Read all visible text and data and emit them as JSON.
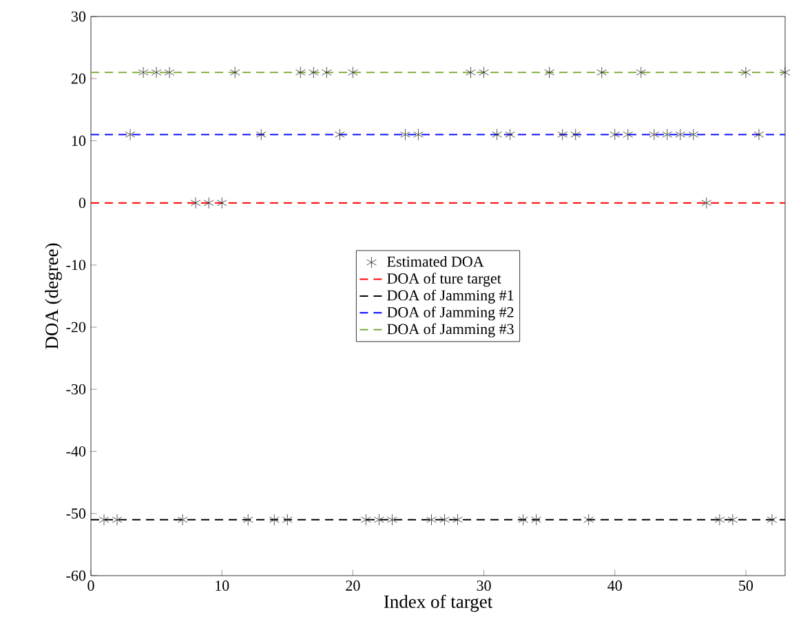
{
  "chart_data": {
    "type": "line",
    "xlabel": "Index of target",
    "ylabel": "DOA (degree)",
    "xlim": [
      0,
      53
    ],
    "ylim": [
      -60,
      30
    ],
    "xticks": [
      0,
      10,
      20,
      30,
      40,
      50
    ],
    "yticks": [
      -60,
      -50,
      -40,
      -30,
      -20,
      -10,
      0,
      10,
      20,
      30
    ],
    "grid": false,
    "legend": "center",
    "series": [
      {
        "name": "Estimated DOA",
        "type": "scatter",
        "marker": "cross",
        "color": "#262626",
        "x": [
          1,
          2,
          3,
          4,
          5,
          6,
          7,
          8,
          9,
          10,
          11,
          12,
          13,
          14,
          15,
          16,
          17,
          18,
          19,
          20,
          21,
          22,
          23,
          24,
          25,
          26,
          27,
          28,
          29,
          30,
          31,
          32,
          33,
          34,
          35,
          36,
          37,
          38,
          39,
          40,
          41,
          42,
          43,
          44,
          45,
          46,
          47,
          48,
          49,
          50,
          51,
          52,
          53
        ],
        "values": [
          -51,
          -51,
          11,
          21,
          21,
          21,
          -51,
          0,
          0,
          0,
          21,
          -51,
          11,
          -51,
          -51,
          21,
          21,
          21,
          11,
          21,
          -51,
          -51,
          -51,
          11,
          11,
          -51,
          -51,
          -51,
          21,
          21,
          11,
          11,
          -51,
          -51,
          21,
          11,
          11,
          -51,
          21,
          11,
          11,
          21,
          11,
          11,
          11,
          11,
          0,
          -51,
          -51,
          21,
          11,
          -51,
          21
        ]
      },
      {
        "name": "DOA of ture target",
        "line_style": "dashed",
        "color": "#ff0000",
        "x": [
          0,
          53
        ],
        "values": [
          0,
          0
        ]
      },
      {
        "name": "DOA of Jamming #1",
        "line_style": "dashed",
        "color": "#000000",
        "x": [
          0,
          53
        ],
        "values": [
          -51,
          -51
        ]
      },
      {
        "name": "DOA of Jamming #2",
        "line_style": "dashed",
        "color": "#0000ff",
        "x": [
          0,
          53
        ],
        "values": [
          11,
          11
        ]
      },
      {
        "name": "DOA of Jamming #3",
        "line_style": "dashed",
        "color": "#77ac30",
        "x": [
          0,
          53
        ],
        "values": [
          21,
          21
        ]
      }
    ]
  }
}
